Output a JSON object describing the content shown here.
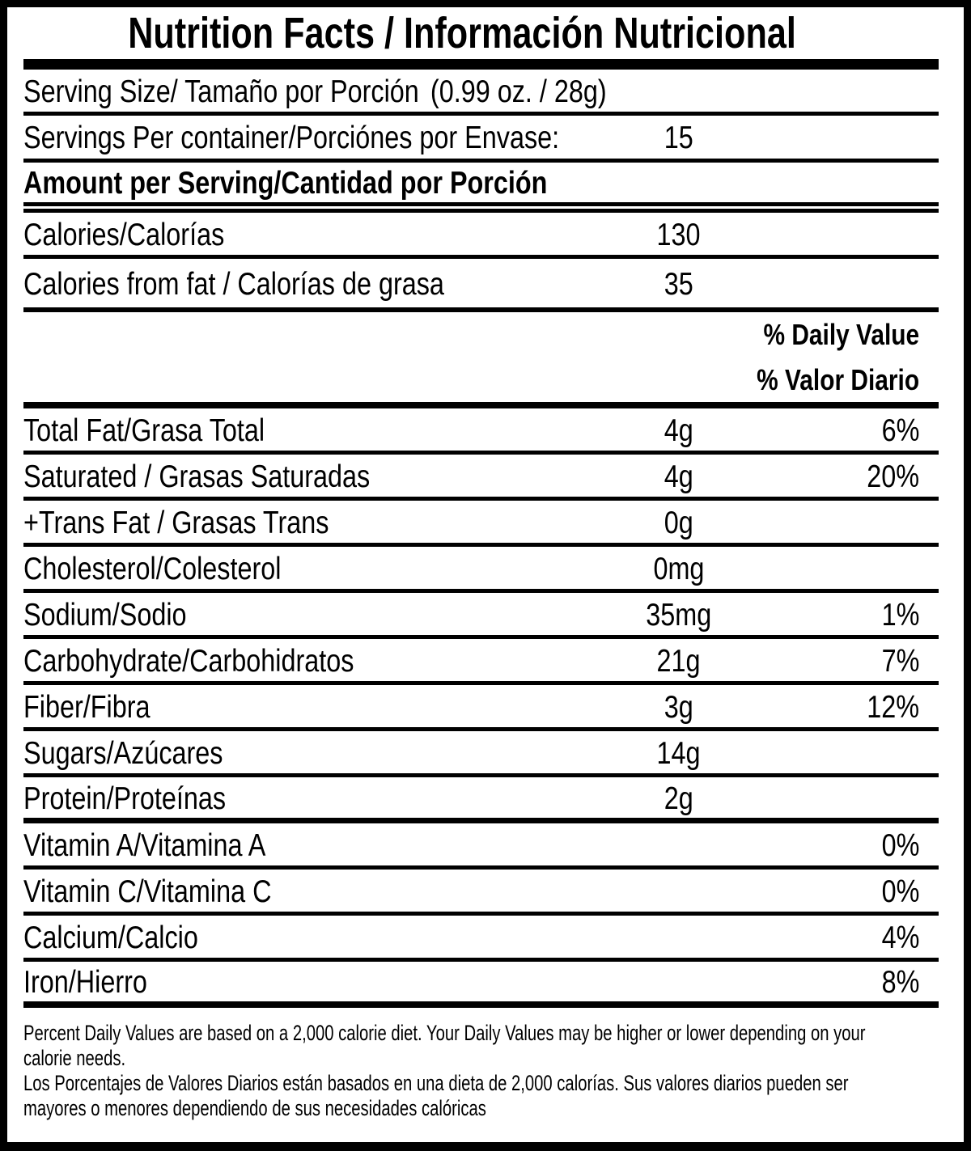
{
  "title": "Nutrition Facts / Información Nutricional",
  "serving": {
    "size_label": "Serving Size/ Tamaño por Porción",
    "size_value": "(0.99 oz. / 28g)",
    "per_container_label": "Servings Per container/Porciónes por Envase:",
    "per_container_value": "15"
  },
  "amount_per_serving_heading": "Amount per Serving/Cantidad por Porción",
  "daily_value_heading": {
    "en": "% Daily Value",
    "es": "% Valor Diario"
  },
  "rows": [
    {
      "label": "Calories/Calorías",
      "amount": "130",
      "dv": ""
    },
    {
      "label": "Calories from fat / Calorías de grasa",
      "amount": "35",
      "dv": ""
    },
    {
      "label": "Total Fat/Grasa Total",
      "amount": "4g",
      "dv": "6%"
    },
    {
      "label": "Saturated / Grasas Saturadas",
      "amount": "4g",
      "dv": "20%"
    },
    {
      "label": "+Trans Fat / Grasas Trans",
      "amount": "0g",
      "dv": ""
    },
    {
      "label": "Cholesterol/Colesterol",
      "amount": "0mg",
      "dv": ""
    },
    {
      "label": "Sodium/Sodio",
      "amount": "35mg",
      "dv": "1%"
    },
    {
      "label": "Carbohydrate/Carbohidratos",
      "amount": "21g",
      "dv": "7%"
    },
    {
      "label": "Fiber/Fibra",
      "amount": "3g",
      "dv": "12%"
    },
    {
      "label": "Sugars/Azúcares",
      "amount": "14g",
      "dv": ""
    },
    {
      "label": "Protein/Proteínas",
      "amount": "2g",
      "dv": ""
    },
    {
      "label": "Vitamin A/Vitamina A",
      "amount": "",
      "dv": "0%"
    },
    {
      "label": "Vitamin C/Vitamina C",
      "amount": "",
      "dv": "0%"
    },
    {
      "label": "Calcium/Calcio",
      "amount": "",
      "dv": "4%"
    },
    {
      "label": "Iron/Hierro",
      "amount": "",
      "dv": "8%"
    }
  ],
  "footnote": {
    "en_line1": "Percent Daily Values are based on a 2,000 calorie diet. Your Daily Values may be higher or lower depending on your",
    "en_line2": "calorie needs.",
    "es_line1": "Los Porcentajes de Valores Diarios están basados en una dieta de 2,000 calorías. Sus valores diarios pueden ser",
    "es_line2": "mayores o menores dependiendo de sus necesidades calóricas"
  }
}
